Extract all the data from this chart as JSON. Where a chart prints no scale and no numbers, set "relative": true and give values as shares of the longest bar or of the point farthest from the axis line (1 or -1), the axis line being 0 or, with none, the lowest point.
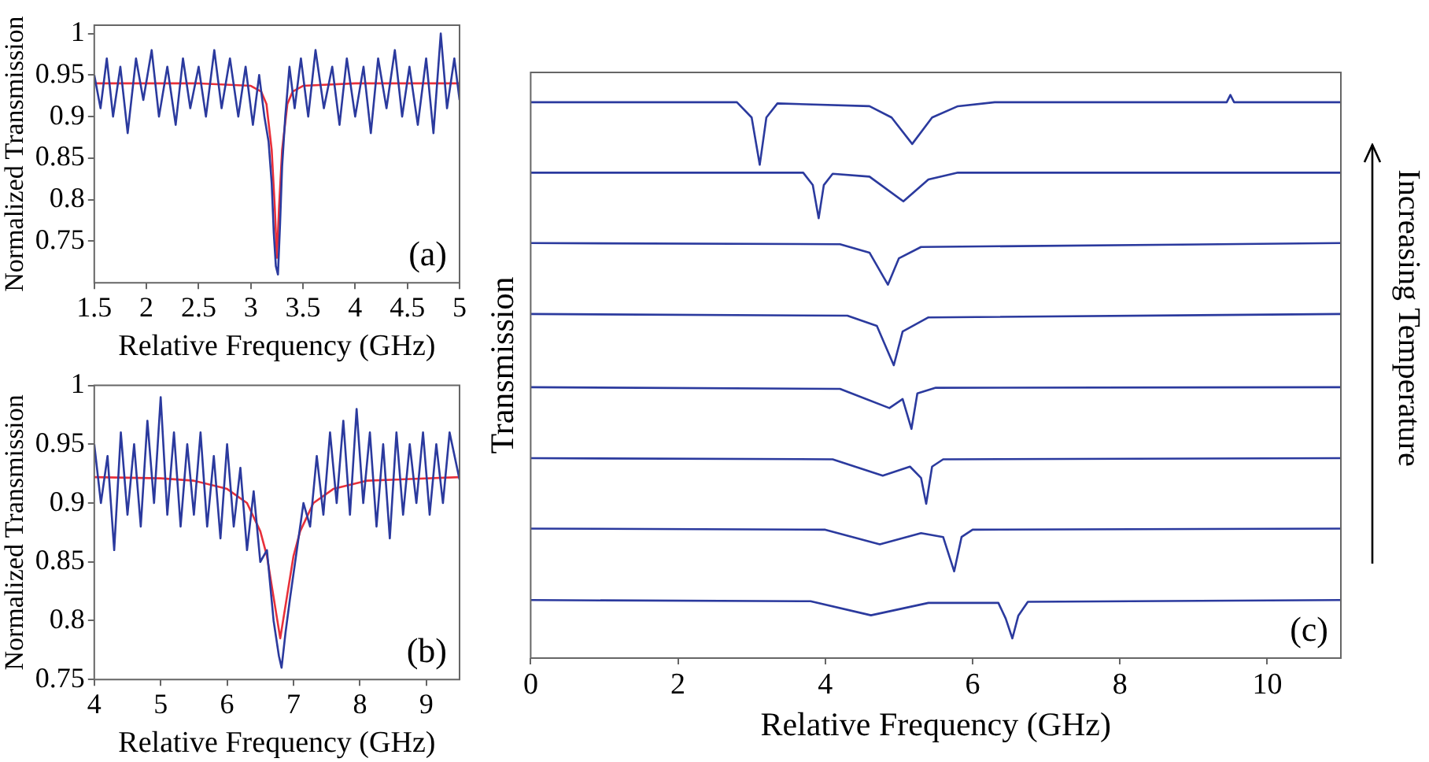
{
  "chart_data": [
    {
      "type": "line",
      "xlabel": "Relative Frequency (GHz)",
      "ylabel": "Normalized Transmission",
      "annotations": [
        "(a)"
      ],
      "xlim": [
        1.5,
        5
      ],
      "xticks": [
        1.5,
        2,
        2.5,
        3,
        3.5,
        4,
        4.5,
        5
      ],
      "ylim": [
        0.7,
        1.01
      ],
      "yticks": [
        0.75,
        0.8,
        0.85,
        0.9,
        0.95,
        1
      ],
      "series": [
        {
          "color": "#2b3a9e",
          "x": [
            1.5,
            1.56,
            1.62,
            1.68,
            1.75,
            1.82,
            1.9,
            1.97,
            2.05,
            2.12,
            2.2,
            2.28,
            2.35,
            2.42,
            2.5,
            2.57,
            2.65,
            2.72,
            2.8,
            2.88,
            2.95,
            3.02,
            3.08,
            3.13,
            3.17,
            3.2,
            3.22,
            3.24,
            3.26,
            3.28,
            3.3,
            3.33,
            3.37,
            3.42,
            3.48,
            3.55,
            3.62,
            3.7,
            3.78,
            3.85,
            3.92,
            4.0,
            4.08,
            4.15,
            4.22,
            4.3,
            4.38,
            4.45,
            4.52,
            4.6,
            4.68,
            4.75,
            4.82,
            4.88,
            4.95,
            5.0
          ],
          "values": [
            0.95,
            0.91,
            0.97,
            0.9,
            0.96,
            0.88,
            0.97,
            0.92,
            0.98,
            0.9,
            0.96,
            0.89,
            0.97,
            0.91,
            0.96,
            0.9,
            0.98,
            0.91,
            0.97,
            0.9,
            0.96,
            0.89,
            0.95,
            0.9,
            0.87,
            0.82,
            0.76,
            0.72,
            0.71,
            0.77,
            0.84,
            0.9,
            0.96,
            0.91,
            0.97,
            0.9,
            0.98,
            0.91,
            0.96,
            0.89,
            0.97,
            0.9,
            0.96,
            0.88,
            0.97,
            0.91,
            0.98,
            0.9,
            0.96,
            0.89,
            0.97,
            0.88,
            1.0,
            0.91,
            0.97,
            0.92
          ]
        },
        {
          "color": "#e8303a",
          "x": [
            1.5,
            2.5,
            3.0,
            3.1,
            3.15,
            3.2,
            3.23,
            3.25,
            3.27,
            3.3,
            3.35,
            3.4,
            3.5,
            4,
            5
          ],
          "values": [
            0.94,
            0.94,
            0.937,
            0.93,
            0.915,
            0.86,
            0.79,
            0.73,
            0.79,
            0.86,
            0.915,
            0.93,
            0.937,
            0.94,
            0.94
          ]
        }
      ]
    },
    {
      "type": "line",
      "xlabel": "Relative Frequency (GHz)",
      "ylabel": "Normalized Transmission",
      "annotations": [
        "(b)"
      ],
      "xlim": [
        4,
        9.5
      ],
      "xticks": [
        4,
        5,
        6,
        7,
        8,
        9
      ],
      "ylim": [
        0.75,
        1
      ],
      "yticks": [
        0.75,
        0.8,
        0.85,
        0.9,
        0.95,
        1
      ],
      "series": [
        {
          "color": "#2b3a9e",
          "x": [
            4.0,
            4.1,
            4.2,
            4.3,
            4.4,
            4.5,
            4.6,
            4.7,
            4.8,
            4.9,
            5.0,
            5.1,
            5.2,
            5.3,
            5.4,
            5.5,
            5.6,
            5.7,
            5.8,
            5.9,
            6.0,
            6.1,
            6.2,
            6.3,
            6.4,
            6.5,
            6.6,
            6.7,
            6.78,
            6.82,
            6.88,
            6.95,
            7.05,
            7.15,
            7.25,
            7.35,
            7.45,
            7.55,
            7.65,
            7.75,
            7.85,
            7.95,
            8.05,
            8.15,
            8.25,
            8.35,
            8.45,
            8.55,
            8.65,
            8.75,
            8.85,
            8.95,
            9.05,
            9.15,
            9.25,
            9.35,
            9.5
          ],
          "values": [
            0.95,
            0.9,
            0.94,
            0.86,
            0.96,
            0.89,
            0.95,
            0.88,
            0.97,
            0.9,
            0.99,
            0.89,
            0.96,
            0.88,
            0.95,
            0.89,
            0.96,
            0.88,
            0.94,
            0.87,
            0.95,
            0.88,
            0.93,
            0.86,
            0.91,
            0.85,
            0.86,
            0.8,
            0.77,
            0.76,
            0.79,
            0.82,
            0.86,
            0.9,
            0.88,
            0.94,
            0.89,
            0.96,
            0.9,
            0.97,
            0.89,
            0.98,
            0.9,
            0.96,
            0.88,
            0.95,
            0.87,
            0.96,
            0.89,
            0.95,
            0.9,
            0.96,
            0.89,
            0.95,
            0.9,
            0.96,
            0.92
          ]
        },
        {
          "color": "#e8303a",
          "x": [
            4,
            5,
            5.5,
            6,
            6.3,
            6.5,
            6.6,
            6.7,
            6.8,
            6.9,
            7.0,
            7.1,
            7.3,
            7.6,
            8.1,
            9.5
          ],
          "values": [
            0.922,
            0.921,
            0.919,
            0.912,
            0.9,
            0.876,
            0.855,
            0.82,
            0.785,
            0.82,
            0.855,
            0.876,
            0.9,
            0.912,
            0.919,
            0.922
          ]
        }
      ]
    },
    {
      "type": "line",
      "relative": true,
      "xlabel": "Relative Frequency (GHz)",
      "ylabel": "Transmission",
      "annotations": [
        "(c)",
        "Increasing Temperature"
      ],
      "xlim": [
        0,
        11
      ],
      "xticks": [
        0,
        2,
        4,
        6,
        8,
        10
      ],
      "series": [
        {
          "color": "#2b3a9e",
          "x": [
            0,
            2.8,
            3.0,
            3.11,
            3.2,
            3.35,
            4.6,
            4.9,
            5.18,
            5.45,
            5.8,
            6.3,
            9.45,
            9.5,
            9.55,
            11
          ],
          "values": [
            0.987,
            0.987,
            0.96,
            0.876,
            0.96,
            0.985,
            0.98,
            0.96,
            0.913,
            0.96,
            0.98,
            0.987,
            0.987,
            1.0,
            0.987,
            0.987
          ]
        },
        {
          "color": "#2b3a9e",
          "x": [
            0,
            3.7,
            3.83,
            3.91,
            3.98,
            4.1,
            4.6,
            5.06,
            5.4,
            5.8,
            11
          ],
          "values": [
            0.862,
            0.862,
            0.84,
            0.781,
            0.84,
            0.86,
            0.855,
            0.811,
            0.85,
            0.862,
            0.862
          ]
        },
        {
          "color": "#2b3a9e",
          "x": [
            0,
            4.2,
            4.6,
            4.85,
            5.0,
            5.3,
            11
          ],
          "values": [
            0.737,
            0.735,
            0.72,
            0.663,
            0.71,
            0.73,
            0.737
          ]
        },
        {
          "color": "#2b3a9e",
          "x": [
            0,
            4.3,
            4.7,
            4.93,
            5.05,
            5.4,
            11
          ],
          "values": [
            0.611,
            0.608,
            0.59,
            0.52,
            0.58,
            0.605,
            0.611
          ]
        },
        {
          "color": "#2b3a9e",
          "x": [
            0,
            4.2,
            4.87,
            5.05,
            5.17,
            5.25,
            5.5,
            11
          ],
          "values": [
            0.481,
            0.478,
            0.444,
            0.46,
            0.407,
            0.47,
            0.48,
            0.481
          ]
        },
        {
          "color": "#2b3a9e",
          "x": [
            0,
            4.1,
            4.78,
            5.15,
            5.3,
            5.37,
            5.45,
            5.6,
            11
          ],
          "values": [
            0.355,
            0.353,
            0.324,
            0.34,
            0.32,
            0.274,
            0.34,
            0.353,
            0.355
          ]
        },
        {
          "color": "#2b3a9e",
          "x": [
            0,
            4.0,
            4.74,
            5.3,
            5.6,
            5.75,
            5.85,
            6.0,
            11
          ],
          "values": [
            0.23,
            0.228,
            0.202,
            0.222,
            0.215,
            0.154,
            0.215,
            0.228,
            0.23
          ]
        },
        {
          "color": "#2b3a9e",
          "x": [
            0,
            3.8,
            4.62,
            5.4,
            6.35,
            6.45,
            6.54,
            6.62,
            6.75,
            11
          ],
          "values": [
            0.103,
            0.101,
            0.076,
            0.098,
            0.098,
            0.07,
            0.035,
            0.075,
            0.1,
            0.103
          ]
        }
      ]
    }
  ]
}
